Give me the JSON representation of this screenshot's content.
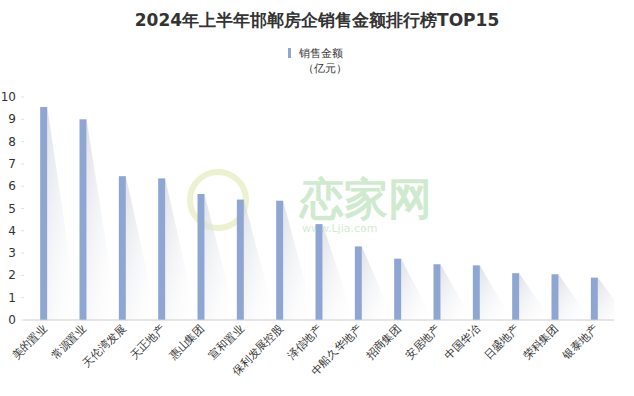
{
  "chart_data": {
    "type": "bar",
    "title": "2024年上半年邯郸房企销售金额排行榜TOP15",
    "categories": [
      "美的置业",
      "常源置业",
      "天伦湾发展",
      "天正地产",
      "惠山集团",
      "宣和置业",
      "保利发展控股",
      "泽信地产",
      "中船久华地产",
      "招商集团",
      "安居地产",
      "中国华冶",
      "日盛地产",
      "荣科集团",
      "银泰地产"
    ],
    "series": [
      {
        "name": "销售金额（亿元）",
        "color": "#8fa6d3",
        "values": [
          9.55,
          9.0,
          6.45,
          6.35,
          5.65,
          5.4,
          5.35,
          4.3,
          3.3,
          2.75,
          2.5,
          2.45,
          2.1,
          2.05,
          1.9
        ]
      }
    ],
    "ylim": [
      0,
      10
    ],
    "yticks": [
      0,
      1,
      2,
      3,
      4,
      5,
      6,
      7,
      8,
      9,
      10
    ],
    "grid": false,
    "legend": "top",
    "annotations": [
      "恋家网",
      "www.Ljia.com"
    ]
  }
}
